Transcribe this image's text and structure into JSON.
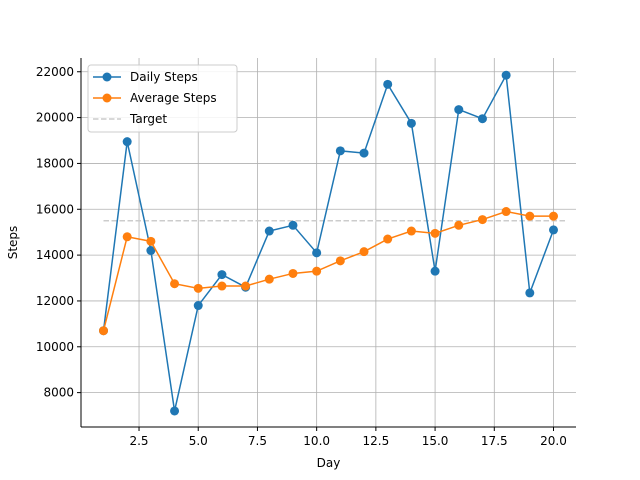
{
  "chart_data": {
    "type": "line",
    "title": "",
    "xlabel": "Day",
    "ylabel": "Steps",
    "xlim": [
      0.05,
      20.95
    ],
    "ylim": [
      6500,
      22600
    ],
    "xticks": [
      2.5,
      5.0,
      7.5,
      10.0,
      12.5,
      15.0,
      17.5,
      20.0
    ],
    "xtick_labels": [
      "2.5",
      "5.0",
      "7.5",
      "10.0",
      "12.5",
      "15.0",
      "17.5",
      "20.0"
    ],
    "yticks": [
      8000,
      10000,
      12000,
      14000,
      16000,
      18000,
      20000,
      22000
    ],
    "ytick_labels": [
      "8000",
      "10000",
      "12000",
      "14000",
      "16000",
      "18000",
      "20000",
      "22000"
    ],
    "grid": true,
    "legend_position": "top-left",
    "x": [
      1,
      2,
      3,
      4,
      5,
      6,
      7,
      8,
      9,
      10,
      11,
      12,
      13,
      14,
      15,
      16,
      17,
      18,
      19,
      20
    ],
    "series": [
      {
        "name": "Daily Steps",
        "color": "#1f77b4",
        "values": [
          10700,
          18950,
          14200,
          7200,
          11800,
          13150,
          12600,
          15050,
          15300,
          14100,
          18550,
          18450,
          21450,
          19750,
          13300,
          20350,
          19950,
          21850,
          12350,
          15100
        ]
      },
      {
        "name": "Average Steps",
        "color": "#ff7f0e",
        "values": [
          10700,
          14800,
          14600,
          12750,
          12550,
          12650,
          12650,
          12950,
          13200,
          13300,
          13750,
          14150,
          14700,
          15050,
          14950,
          15300,
          15550,
          15900,
          15700,
          15700
        ]
      }
    ],
    "reference_line": {
      "name": "Target",
      "color": "#cccccc",
      "style": "dashed",
      "value": 15500
    }
  }
}
